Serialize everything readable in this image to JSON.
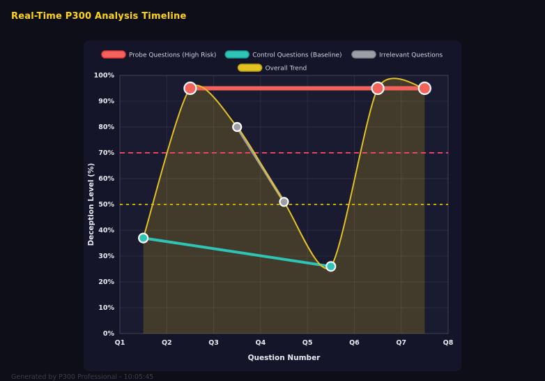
{
  "page": {
    "title": "Real-Time P300 Analysis Timeline",
    "footer": "Generated by P300 Professional - 10:05:45"
  },
  "theme": {
    "background": "#0e0e19",
    "panel_background": "#15152a",
    "plot_background": "#1a1a31",
    "title_color": "#ffd60a",
    "axis_text_color": "#e8e8f0",
    "legend_text_color": "#d2d2dc",
    "grid_color": "rgba(255,255,255,0.07)",
    "plot_border_color": "rgba(255,255,255,0.12)",
    "point_border_color": "#ffffff"
  },
  "chart_data": {
    "type": "line",
    "title": "Real-Time P300 Analysis Timeline",
    "xlabel": "Question Number",
    "ylabel": "Deception Level (%)",
    "x_tick_labels": [
      "Q1",
      "Q2",
      "Q3",
      "Q4",
      "Q5",
      "Q6",
      "Q7",
      "Q8"
    ],
    "y_tick_labels": [
      "0%",
      "10%",
      "20%",
      "30%",
      "40%",
      "50%",
      "60%",
      "70%",
      "80%",
      "90%",
      "100%"
    ],
    "xlim": [
      1,
      8
    ],
    "ylim": [
      0,
      100
    ],
    "grid": true,
    "legend_position": "top",
    "series": [
      {
        "name": "Probe Questions (High Risk)",
        "color": "#f4625c",
        "border_color": "#e23b3b",
        "x": [
          2.5,
          6.5,
          7.5
        ],
        "values": [
          95,
          95,
          95
        ],
        "line_width": 6,
        "point_radius": 8.5
      },
      {
        "name": "Control Questions (Baseline)",
        "color": "#2ec4b6",
        "border_color": "#1d9d92",
        "x": [
          1.5,
          5.5
        ],
        "values": [
          37,
          26
        ],
        "line_width": 4,
        "point_radius": 6.5
      },
      {
        "name": "Irrelevant Questions",
        "color": "#9e9ea6",
        "border_color": "#83838d",
        "x": [
          3.5,
          4.5
        ],
        "values": [
          80,
          51
        ],
        "line_width": 4,
        "point_radius": 6
      },
      {
        "name": "Overall Trend",
        "color": "#e3c224",
        "border_color": "#bfa30d",
        "x": [
          1.5,
          2.5,
          3.5,
          4.5,
          5.5,
          6.5,
          7.5
        ],
        "values": [
          37,
          95,
          80,
          51,
          26,
          95,
          95
        ],
        "line_width": 2,
        "point_radius": 0,
        "smooth": true,
        "fill": true,
        "fill_color": "rgba(230,197,26,0.20)"
      }
    ],
    "thresholds": [
      {
        "value": 70,
        "color": "#e8435f",
        "dash": [
          7,
          5
        ]
      },
      {
        "value": 50,
        "color": "#c8ab00",
        "dash": [
          4,
          5
        ]
      }
    ]
  }
}
